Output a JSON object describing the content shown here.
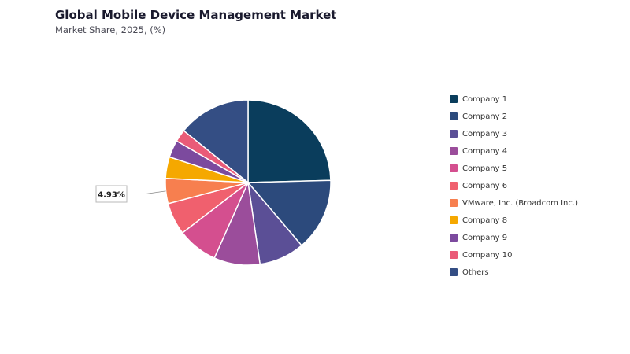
{
  "chart_data": {
    "type": "pie",
    "title": "Global Mobile Device Management Market",
    "subtitle": "Market Share, 2025, (%)",
    "legend_position": "right",
    "slices": [
      {
        "label": "Company 1",
        "value": 24.6,
        "color": "#0a3d5c"
      },
      {
        "label": "Company 2",
        "value": 14.2,
        "color": "#2c4a7c"
      },
      {
        "label": "Company 3",
        "value": 8.9,
        "color": "#5b4f96"
      },
      {
        "label": "Company 4",
        "value": 9.0,
        "color": "#9b4d9b"
      },
      {
        "label": "Company 5",
        "value": 7.9,
        "color": "#d44f8f"
      },
      {
        "label": "Company 6",
        "value": 6.3,
        "color": "#f0606e"
      },
      {
        "label": "VMware, Inc. (Broadcom Inc.)",
        "value": 4.93,
        "color": "#f77f4f"
      },
      {
        "label": "Company 8",
        "value": 4.2,
        "color": "#f5a800"
      },
      {
        "label": "Company 9",
        "value": 3.4,
        "color": "#7c4a9e"
      },
      {
        "label": "Company 10",
        "value": 2.4,
        "color": "#ea5b78"
      },
      {
        "label": "Others",
        "value": 14.2,
        "color": "#344e84"
      }
    ],
    "callout": {
      "slice": "VMware, Inc. (Broadcom Inc.)",
      "text": "4.93%"
    }
  }
}
